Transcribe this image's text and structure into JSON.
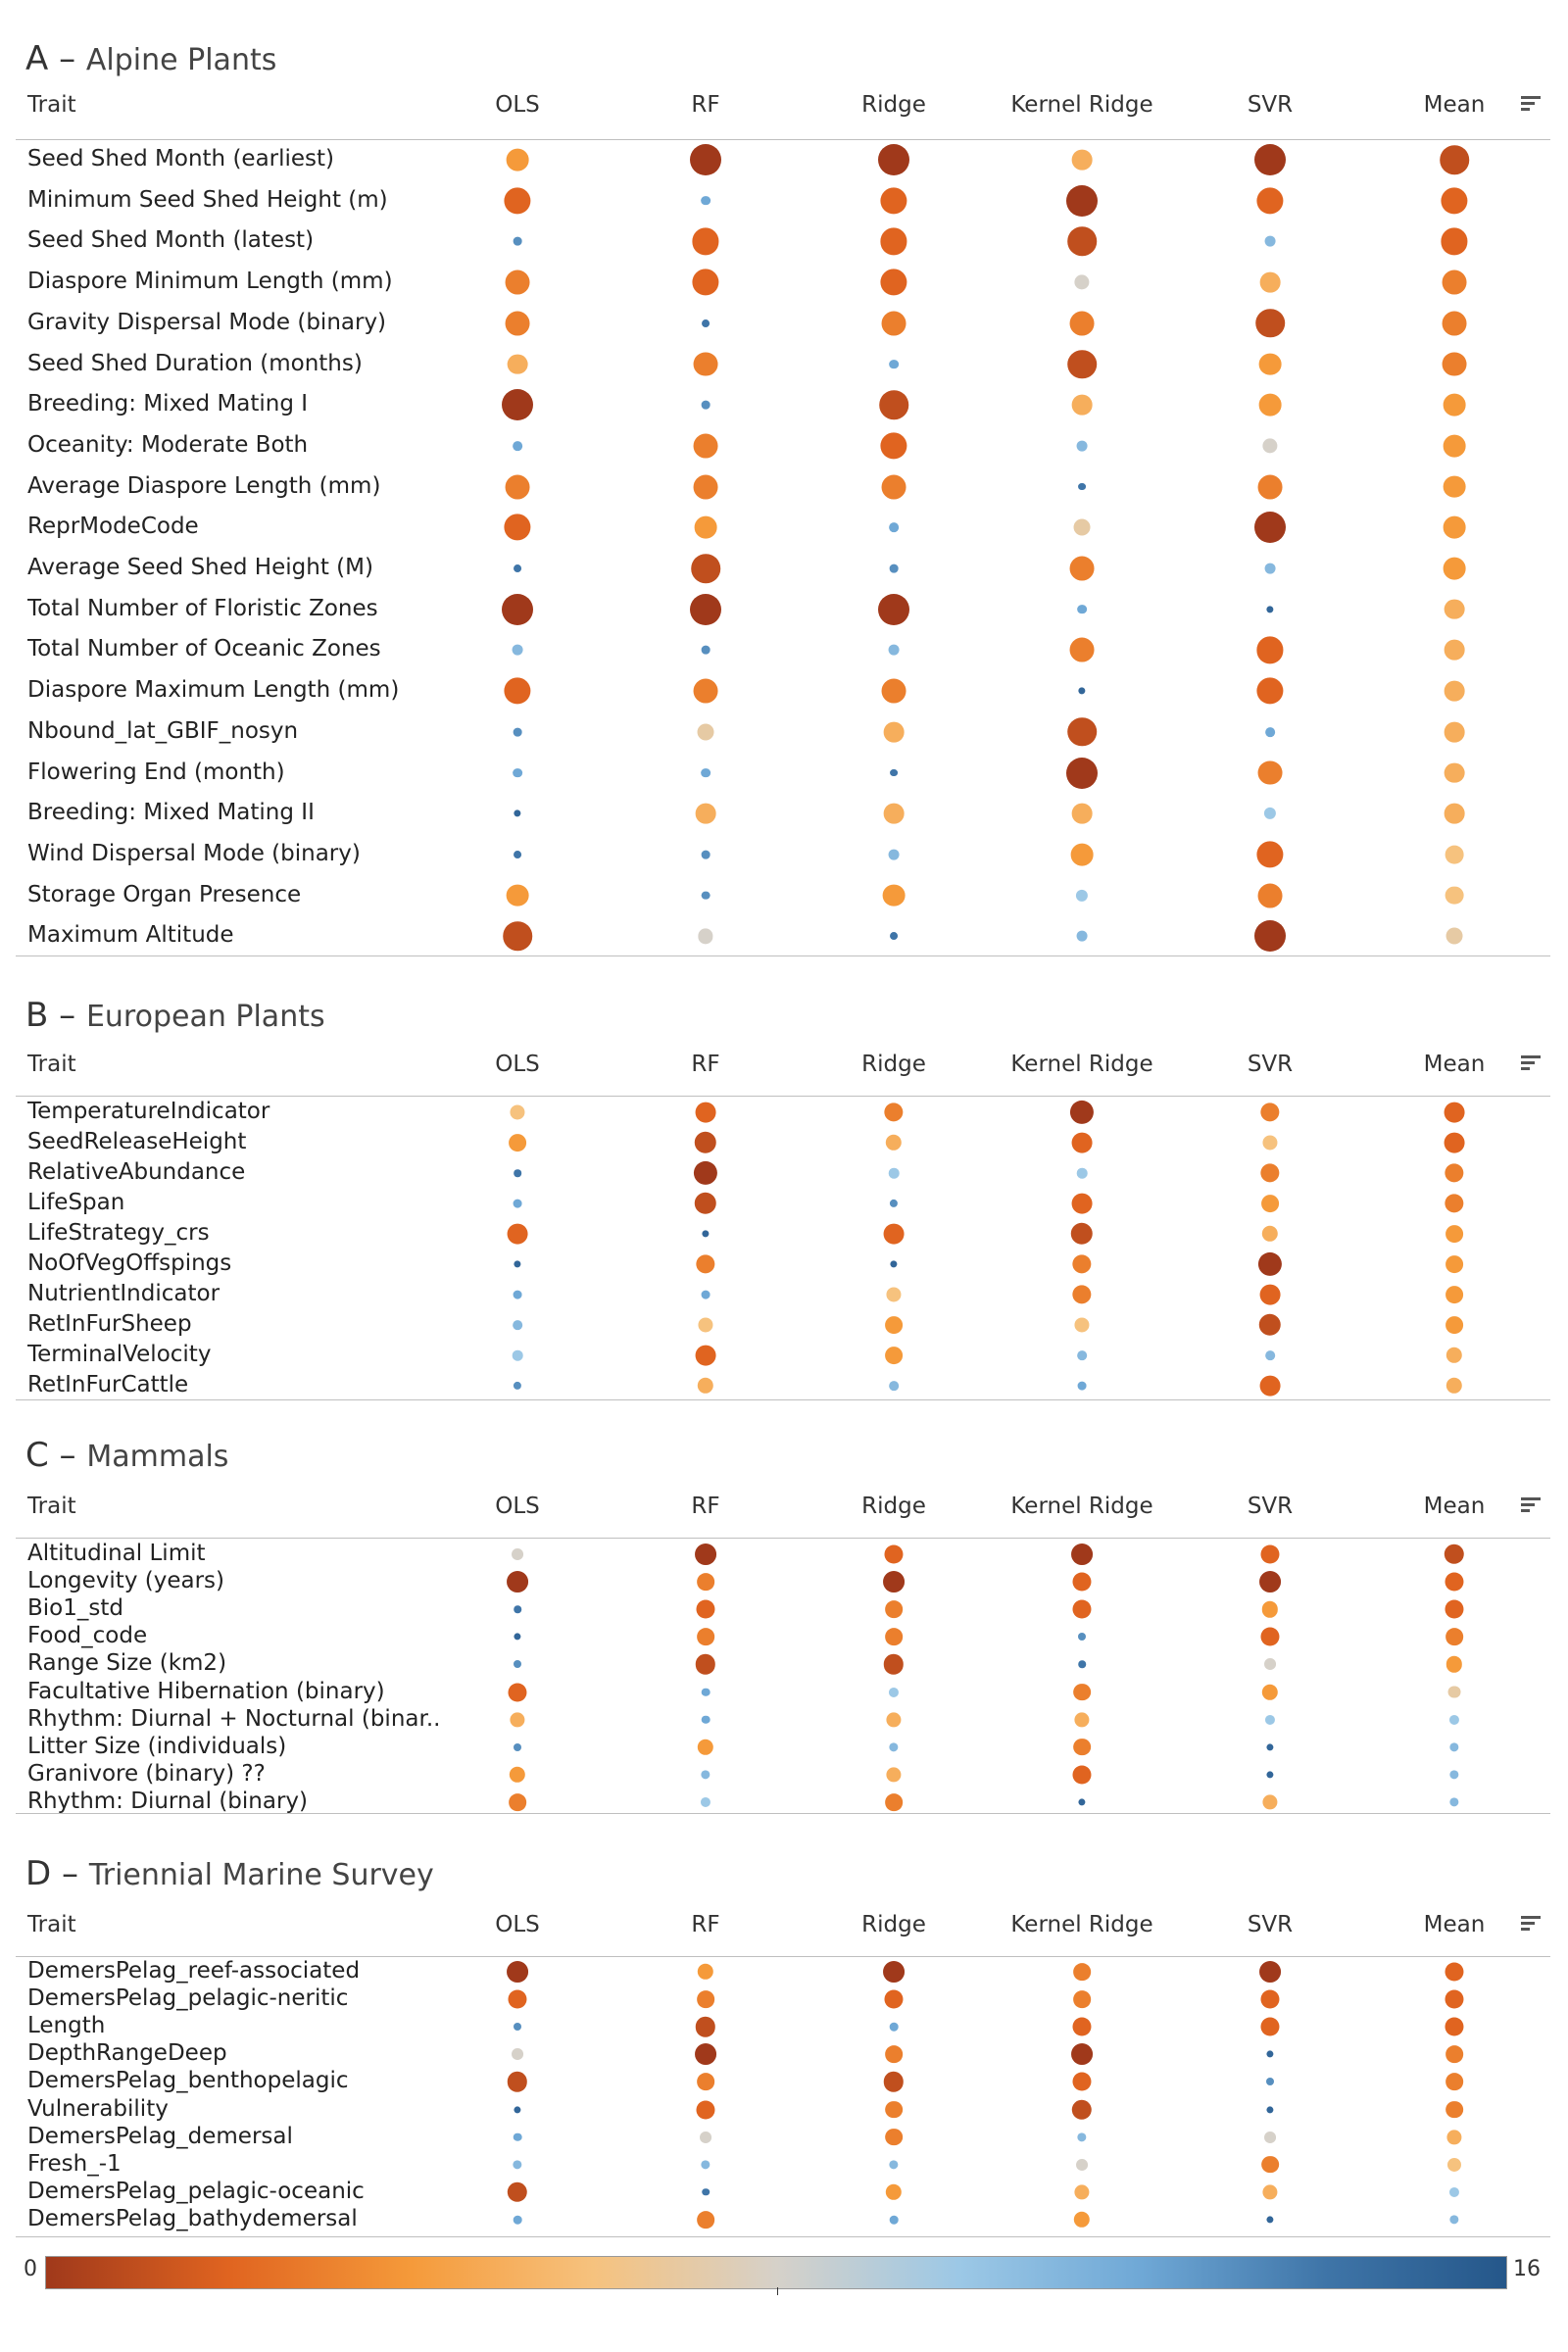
{
  "columns": [
    "OLS",
    "RF",
    "Ridge",
    "Kernel Ridge",
    "SVR",
    "Mean"
  ],
  "trait_header": "Trait",
  "color_legend": {
    "min_label": "0",
    "max_label": "16",
    "min": 0,
    "max": 16,
    "stops": [
      "#a0391b",
      "#e06420",
      "#f59a3a",
      "#f6c27e",
      "#d6d1c9",
      "#9cc8e6",
      "#6fa8d6",
      "#3f75a8",
      "#25578a"
    ]
  },
  "chart_data": [
    {
      "type": "table",
      "panel_letter": "A",
      "title": "Alpine Plants",
      "rows": [
        {
          "trait": "Seed Shed Month (earliest)",
          "ranks": [
            4,
            0,
            0,
            5,
            0,
            1
          ]
        },
        {
          "trait": "Minimum Seed Shed Height (m)",
          "ranks": [
            2,
            12,
            2,
            0,
            2,
            2
          ]
        },
        {
          "trait": "Seed Shed Month (latest)",
          "ranks": [
            13,
            2,
            2,
            1,
            11,
            2
          ]
        },
        {
          "trait": "Diaspore Minimum Length (mm)",
          "ranks": [
            3,
            2,
            2,
            8,
            5,
            3
          ]
        },
        {
          "trait": "Gravity Dispersal Mode (binary)",
          "ranks": [
            3,
            14,
            3,
            3,
            1,
            3
          ]
        },
        {
          "trait": "Seed Shed Duration (months)",
          "ranks": [
            5,
            3,
            12,
            1,
            4,
            3
          ]
        },
        {
          "trait": "Breeding: Mixed Mating I",
          "ranks": [
            0,
            13,
            1,
            5,
            4,
            4
          ]
        },
        {
          "trait": "Oceanity: Moderate Both",
          "ranks": [
            12,
            3,
            2,
            11,
            8,
            4
          ]
        },
        {
          "trait": "Average Diaspore Length (mm)",
          "ranks": [
            3,
            3,
            3,
            14,
            3,
            4
          ]
        },
        {
          "trait": "ReprModeCode",
          "ranks": [
            2,
            4,
            12,
            7,
            0,
            4
          ]
        },
        {
          "trait": "Average Seed Shed Height (M)",
          "ranks": [
            14,
            1,
            13,
            3,
            11,
            4
          ]
        },
        {
          "trait": "Total Number of Floristic Zones",
          "ranks": [
            0,
            0,
            0,
            12,
            15,
            5
          ]
        },
        {
          "trait": "Total Number of Oceanic Zones",
          "ranks": [
            11,
            13,
            11,
            3,
            2,
            5
          ]
        },
        {
          "trait": "Diaspore Maximum Length (mm)",
          "ranks": [
            2,
            3,
            3,
            15,
            2,
            5
          ]
        },
        {
          "trait": "Nbound_lat_GBIF_nosyn",
          "ranks": [
            13,
            7,
            5,
            1,
            12,
            5
          ]
        },
        {
          "trait": "Flowering End (month)",
          "ranks": [
            12,
            12,
            14,
            0,
            3,
            5
          ]
        },
        {
          "trait": "Breeding: Mixed Mating II",
          "ranks": [
            15,
            5,
            5,
            5,
            10,
            5
          ]
        },
        {
          "trait": "Wind Dispersal Mode (binary)",
          "ranks": [
            14,
            13,
            11,
            4,
            2,
            6
          ]
        },
        {
          "trait": "Storage Organ Presence",
          "ranks": [
            4,
            13,
            4,
            10,
            3,
            6
          ]
        },
        {
          "trait": "Maximum Altitude",
          "ranks": [
            1,
            8,
            14,
            11,
            0,
            7
          ]
        }
      ]
    },
    {
      "type": "table",
      "panel_letter": "B",
      "title": "European Plants",
      "rows": [
        {
          "trait": "TemperatureIndicator",
          "ranks": [
            6,
            2,
            3,
            0,
            3,
            2
          ]
        },
        {
          "trait": "SeedReleaseHeight",
          "ranks": [
            4,
            1,
            5,
            2,
            6,
            2
          ]
        },
        {
          "trait": "RelativeAbundance",
          "ranks": [
            14,
            0,
            10,
            10,
            3,
            3
          ]
        },
        {
          "trait": "LifeSpan",
          "ranks": [
            12,
            1,
            13,
            2,
            4,
            3
          ]
        },
        {
          "trait": "LifeStrategy_crs",
          "ranks": [
            2,
            15,
            2,
            1,
            5,
            4
          ]
        },
        {
          "trait": "NoOfVegOffspings",
          "ranks": [
            15,
            3,
            15,
            3,
            0,
            4
          ]
        },
        {
          "trait": "NutrientIndicator",
          "ranks": [
            12,
            12,
            6,
            3,
            2,
            4
          ]
        },
        {
          "trait": "RetInFurSheep",
          "ranks": [
            11,
            6,
            4,
            6,
            1,
            4
          ]
        },
        {
          "trait": "TerminalVelocity",
          "ranks": [
            10,
            2,
            4,
            11,
            11,
            5
          ]
        },
        {
          "trait": "RetInFurCattle",
          "ranks": [
            13,
            5,
            11,
            12,
            2,
            5
          ]
        }
      ]
    },
    {
      "type": "table",
      "panel_letter": "C",
      "title": "Mammals",
      "rows": [
        {
          "trait": "Altitudinal Limit",
          "ranks": [
            8,
            0,
            2,
            0,
            2,
            1
          ]
        },
        {
          "trait": "Longevity (years)",
          "ranks": [
            0,
            3,
            0,
            2,
            0,
            2
          ]
        },
        {
          "trait": "Bio1_std",
          "ranks": [
            14,
            2,
            3,
            2,
            4,
            2
          ]
        },
        {
          "trait": "Food_code",
          "ranks": [
            15,
            3,
            3,
            13,
            2,
            3
          ]
        },
        {
          "trait": "Range Size (km2)",
          "ranks": [
            13,
            1,
            1,
            14,
            8,
            4
          ]
        },
        {
          "trait": "Facultative Hibernation (binary)",
          "ranks": [
            2,
            12,
            10,
            3,
            4,
            7
          ]
        },
        {
          "trait": "Rhythm: Diurnal + Nocturnal (binar..",
          "ranks": [
            5,
            12,
            5,
            5,
            10,
            10
          ]
        },
        {
          "trait": "Litter Size (individuals)",
          "ranks": [
            13,
            4,
            11,
            3,
            15,
            11
          ]
        },
        {
          "trait": "Granivore (binary) ??",
          "ranks": [
            4,
            11,
            5,
            2,
            15,
            11
          ]
        },
        {
          "trait": "Rhythm: Diurnal (binary)",
          "ranks": [
            3,
            10,
            3,
            15,
            5,
            11
          ]
        }
      ]
    },
    {
      "type": "table",
      "panel_letter": "D",
      "title": "Triennial Marine Survey",
      "rows": [
        {
          "trait": "DemersPelag_reef-associated",
          "ranks": [
            0,
            4,
            0,
            3,
            0,
            2
          ]
        },
        {
          "trait": "DemersPelag_pelagic-neritic",
          "ranks": [
            2,
            3,
            2,
            3,
            2,
            2
          ]
        },
        {
          "trait": "Length",
          "ranks": [
            13,
            1,
            12,
            2,
            2,
            2
          ]
        },
        {
          "trait": "DepthRangeDeep",
          "ranks": [
            8,
            0,
            3,
            0,
            15,
            3
          ]
        },
        {
          "trait": "DemersPelag_benthopelagic",
          "ranks": [
            1,
            3,
            1,
            2,
            13,
            3
          ]
        },
        {
          "trait": "Vulnerability",
          "ranks": [
            15,
            2,
            3,
            1,
            15,
            3
          ]
        },
        {
          "trait": "DemersPelag_demersal",
          "ranks": [
            12,
            8,
            3,
            11,
            8,
            5
          ]
        },
        {
          "trait": "Fresh_-1",
          "ranks": [
            11,
            11,
            11,
            8,
            3,
            6
          ]
        },
        {
          "trait": "DemersPelag_pelagic-oceanic",
          "ranks": [
            1,
            14,
            4,
            5,
            5,
            10
          ]
        },
        {
          "trait": "DemersPelag_bathydemersal",
          "ranks": [
            12,
            3,
            12,
            4,
            15,
            11
          ]
        }
      ]
    }
  ]
}
